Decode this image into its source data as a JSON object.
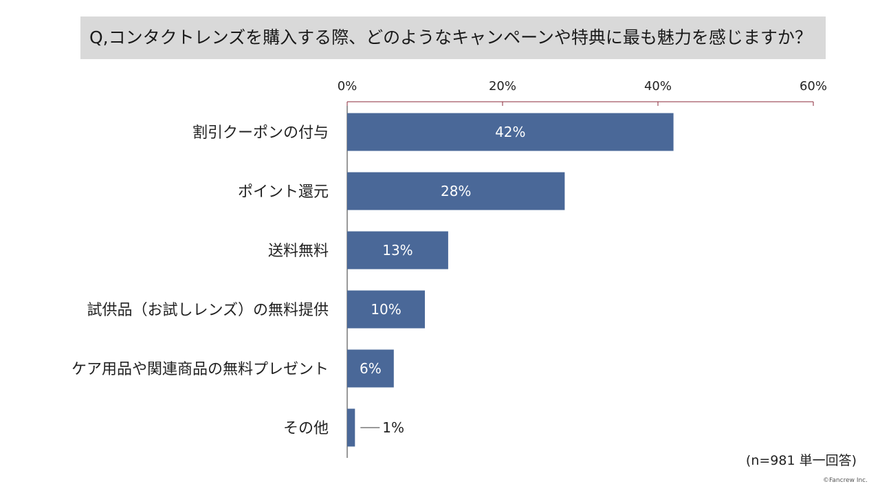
{
  "title": "Q,コンタクトレンズを購入する際、どのようなキャンペーンや特典に最も魅力を感じますか？",
  "note": "(n=981  単一回答)",
  "copyright": "©Fancrew Inc.",
  "colors": {
    "bar": "#4a6898",
    "axis": "#8b2a3a",
    "inside_label": "#ffffff",
    "outside_label": "#222222",
    "title_bg": "#d9d9d9"
  },
  "chart_data": {
    "type": "bar",
    "orientation": "horizontal",
    "categories": [
      "割引クーポンの付与",
      "ポイント還元",
      "送料無料",
      "試供品（お試しレンズ）の無料提供",
      "ケア用品や関連商品の無料プレゼント",
      "その他"
    ],
    "values": [
      42,
      28,
      13,
      10,
      6,
      1
    ],
    "value_labels": [
      "42%",
      "28%",
      "13%",
      "10%",
      "6%",
      "1%"
    ],
    "xlim": [
      0,
      60
    ],
    "x_ticks": [
      0,
      20,
      40,
      60
    ],
    "x_tick_labels": [
      "0%",
      "20%",
      "40%",
      "60%"
    ],
    "x_axis_position": "top",
    "grid": false,
    "legend": "none"
  }
}
